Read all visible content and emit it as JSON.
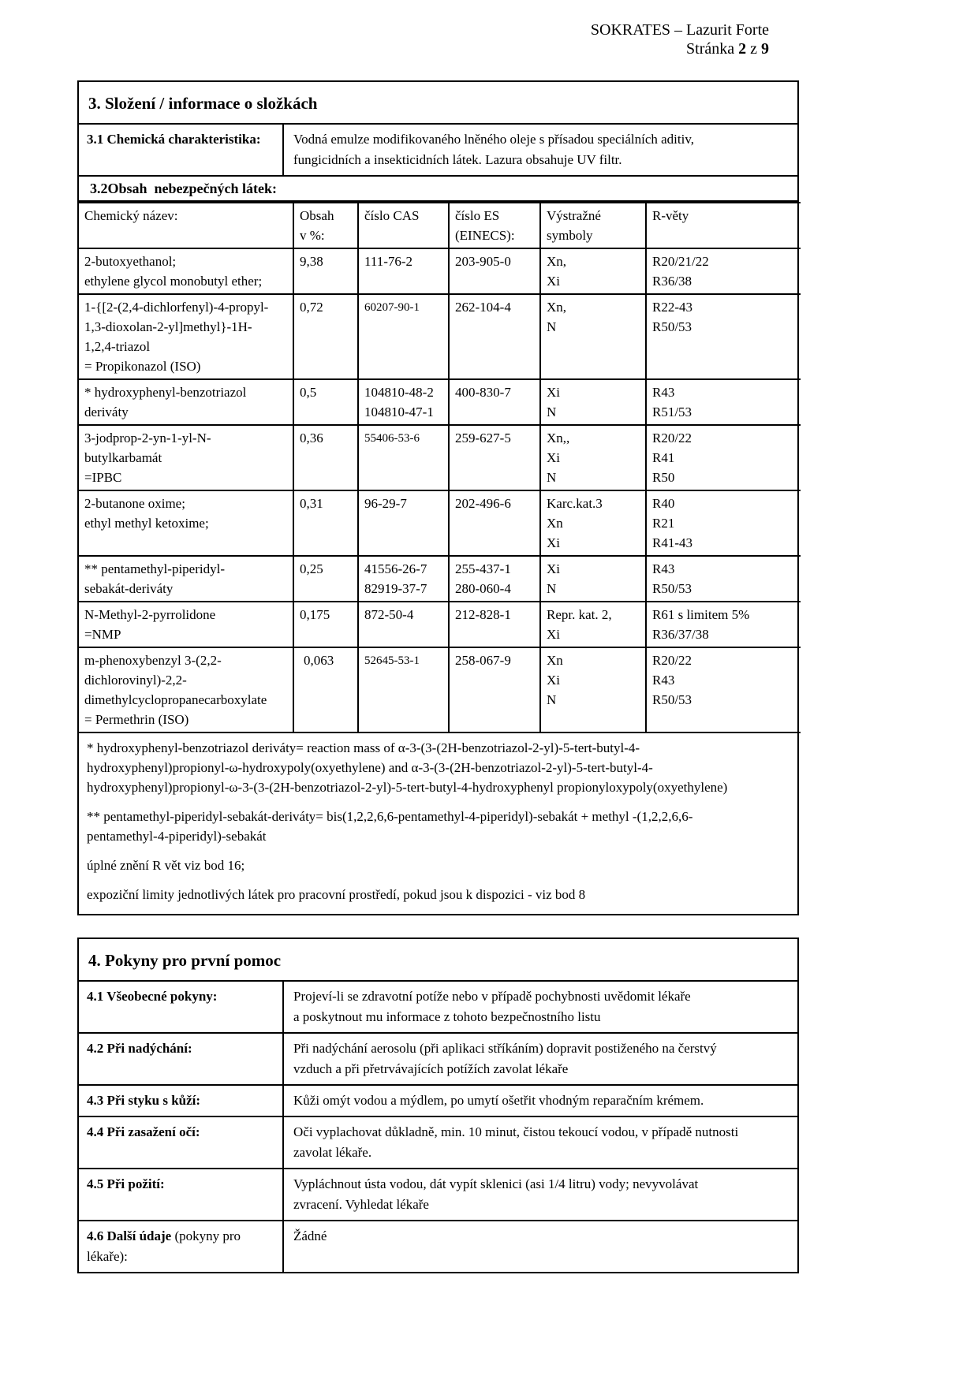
{
  "page_header": {
    "title": "SOKRATES – Lazurit Forte",
    "page_label": "Stránka ",
    "page_current": "2",
    "page_sep": " z ",
    "page_total": "9"
  },
  "section3": {
    "heading": "3.  Složení / informace o složkách",
    "row31_label": "3.1  Chemická charakteristika:",
    "row31_value": "Vodná emulze modifikovaného lněného oleje s přísadou speciálních aditiv,\nfungicidních a insekticidních látek. Lazura obsahuje UV filtr.",
    "row32_heading": "3.2Obsah  nebezpečných látek:",
    "table": {
      "headers": {
        "name": "Chemický název:",
        "obsah": "Obsah\nv %:",
        "cas": "číslo CAS",
        "es": "číslo ES\n(EINECS):",
        "symbols": "Výstražné\nsymboly",
        "rvety": "R-věty"
      },
      "rows": [
        {
          "name": "2-butoxyethanol;\nethylene glycol monobutyl ether;",
          "obsah": "9,38",
          "cas": "111-76-2",
          "es": "203-905-0",
          "symbols": "Xn,\nXi",
          "rvety": "R20/21/22\nR36/38"
        },
        {
          "name": "1-{[2-(2,4-dichlorfenyl)-4-propyl-\n1,3-dioxolan-2-yl]methyl}-1H-\n1,2,4-triazol\n=  Propikonazol (ISO)",
          "obsah": "0,72",
          "cas": "60207-90-1",
          "es": "262-104-4",
          "symbols": "Xn,\nN",
          "rvety": "R22-43\nR50/53"
        },
        {
          "name": " *  hydroxyphenyl-benzotriazol\nderiváty",
          "obsah": "0,5",
          "cas": "104810-48-2\n104810-47-1",
          "es": "400-830-7",
          "symbols": "Xi\nN",
          "rvety": "R43\nR51/53"
        },
        {
          "name": "3-jodprop-2-yn-1-yl-N-\nbutylkarbamát\n=IPBC",
          "obsah": "0,36",
          "cas": "55406-53-6",
          "es": "259-627-5",
          "symbols": "Xn,,\nXi\nN",
          "rvety": "R20/22\nR41\nR50"
        },
        {
          "name": "2-butanone oxime;\nethyl methyl ketoxime;",
          "obsah": "0,31",
          "cas": "96-29-7",
          "es": "202-496-6",
          "symbols": "Karc.kat.3\nXn\nXi",
          "rvety": "R40\nR21\nR41-43"
        },
        {
          "name": " ** pentamethyl-piperidyl-\nsebakát-deriváty",
          "obsah": "0,25",
          "cas": "41556-26-7\n82919-37-7",
          "es": "255-437-1\n280-060-4",
          "symbols": "Xi\nN",
          "rvety": "R43\nR50/53"
        },
        {
          "name": "N-Methyl-2-pyrrolidone\n=NMP",
          "obsah": "0,175",
          "cas": "872-50-4",
          "es": "212-828-1",
          "symbols": "Repr. kat. 2,\nXi",
          "rvety": "R61 s limitem 5%\nR36/37/38"
        },
        {
          "name": "m-phenoxybenzyl 3-(2,2-\ndichlorovinyl)-2,2-\ndimethylcyclopropanecarboxylate\n= Permethrin (ISO)",
          "obsah": "0,063",
          "cas": "52645-53-1",
          "es": "258-067-9",
          "symbols": "Xn\nXi\nN",
          "rvety": "R20/22\nR43\nR50/53"
        }
      ]
    },
    "footnote1": "*    hydroxyphenyl-benzotriazol deriváty= reaction mass of α-3-(3-(2H-benzotriazol-2-yl)-5-tert-butyl-4-\nhydroxyphenyl)propionyl-ω-hydroxypoly(oxyethylene) and α-3-(3-(2H-benzotriazol-2-yl)-5-tert-butyl-4-\nhydroxyphenyl)propionyl-ω-3-(3-(2H-benzotriazol-2-yl)-5-tert-butyl-4-hydroxyphenyl propionyloxypoly(oxyethylene)",
    "footnote2": "**  pentamethyl-piperidyl-sebakát-deriváty= bis(1,2,2,6,6-pentamethyl-4-piperidyl)-sebakát + methyl -(1,2,2,6,6-\npentamethyl-4-piperidyl)-sebakát",
    "note_r": "úplné znění R vět viz bod 16;",
    "note_limits": "expoziční limity jednotlivých látek pro pracovní prostředí, pokud jsou  k dispozici - viz bod 8"
  },
  "section4": {
    "heading": "4. Pokyny pro první pomoc",
    "rows": [
      {
        "label": "4.1  Všeobecné pokyny:",
        "value": "Projeví-li se zdravotní potíže nebo v případě pochybnosti uvědomit lékaře\na poskytnout mu informace z tohoto bezpečnostního listu"
      },
      {
        "label": "4.2  Při nadýchání:",
        "value": "Při nadýchání aerosolu (při aplikaci stříkáním) dopravit  postiženého na čerstvý\nvzduch a při přetrvávajících potížích zavolat lékaře"
      },
      {
        "label": "4.3  Při styku s kůží:",
        "value": "Kůži omýt vodou a mýdlem, po umytí ošetřit vhodným reparačním krémem."
      },
      {
        "label": "4.4  Při zasažení očí:",
        "value": "Oči vyplachovat důkladně, min. 10 minut, čistou tekoucí vodou,  v případě nutnosti\nzavolat lékaře."
      },
      {
        "label": "4.5  Při požití:",
        "value": "Vypláchnout ústa vodou, dát vypít sklenici (asi 1/4 litru) vody;  nevyvolávat\nzvracení. Vyhledat lékaře"
      },
      {
        "label": "4.6  Další údaje",
        "label_suffix": " (pokyny pro lékaře):",
        "value": "Žádné"
      }
    ]
  }
}
